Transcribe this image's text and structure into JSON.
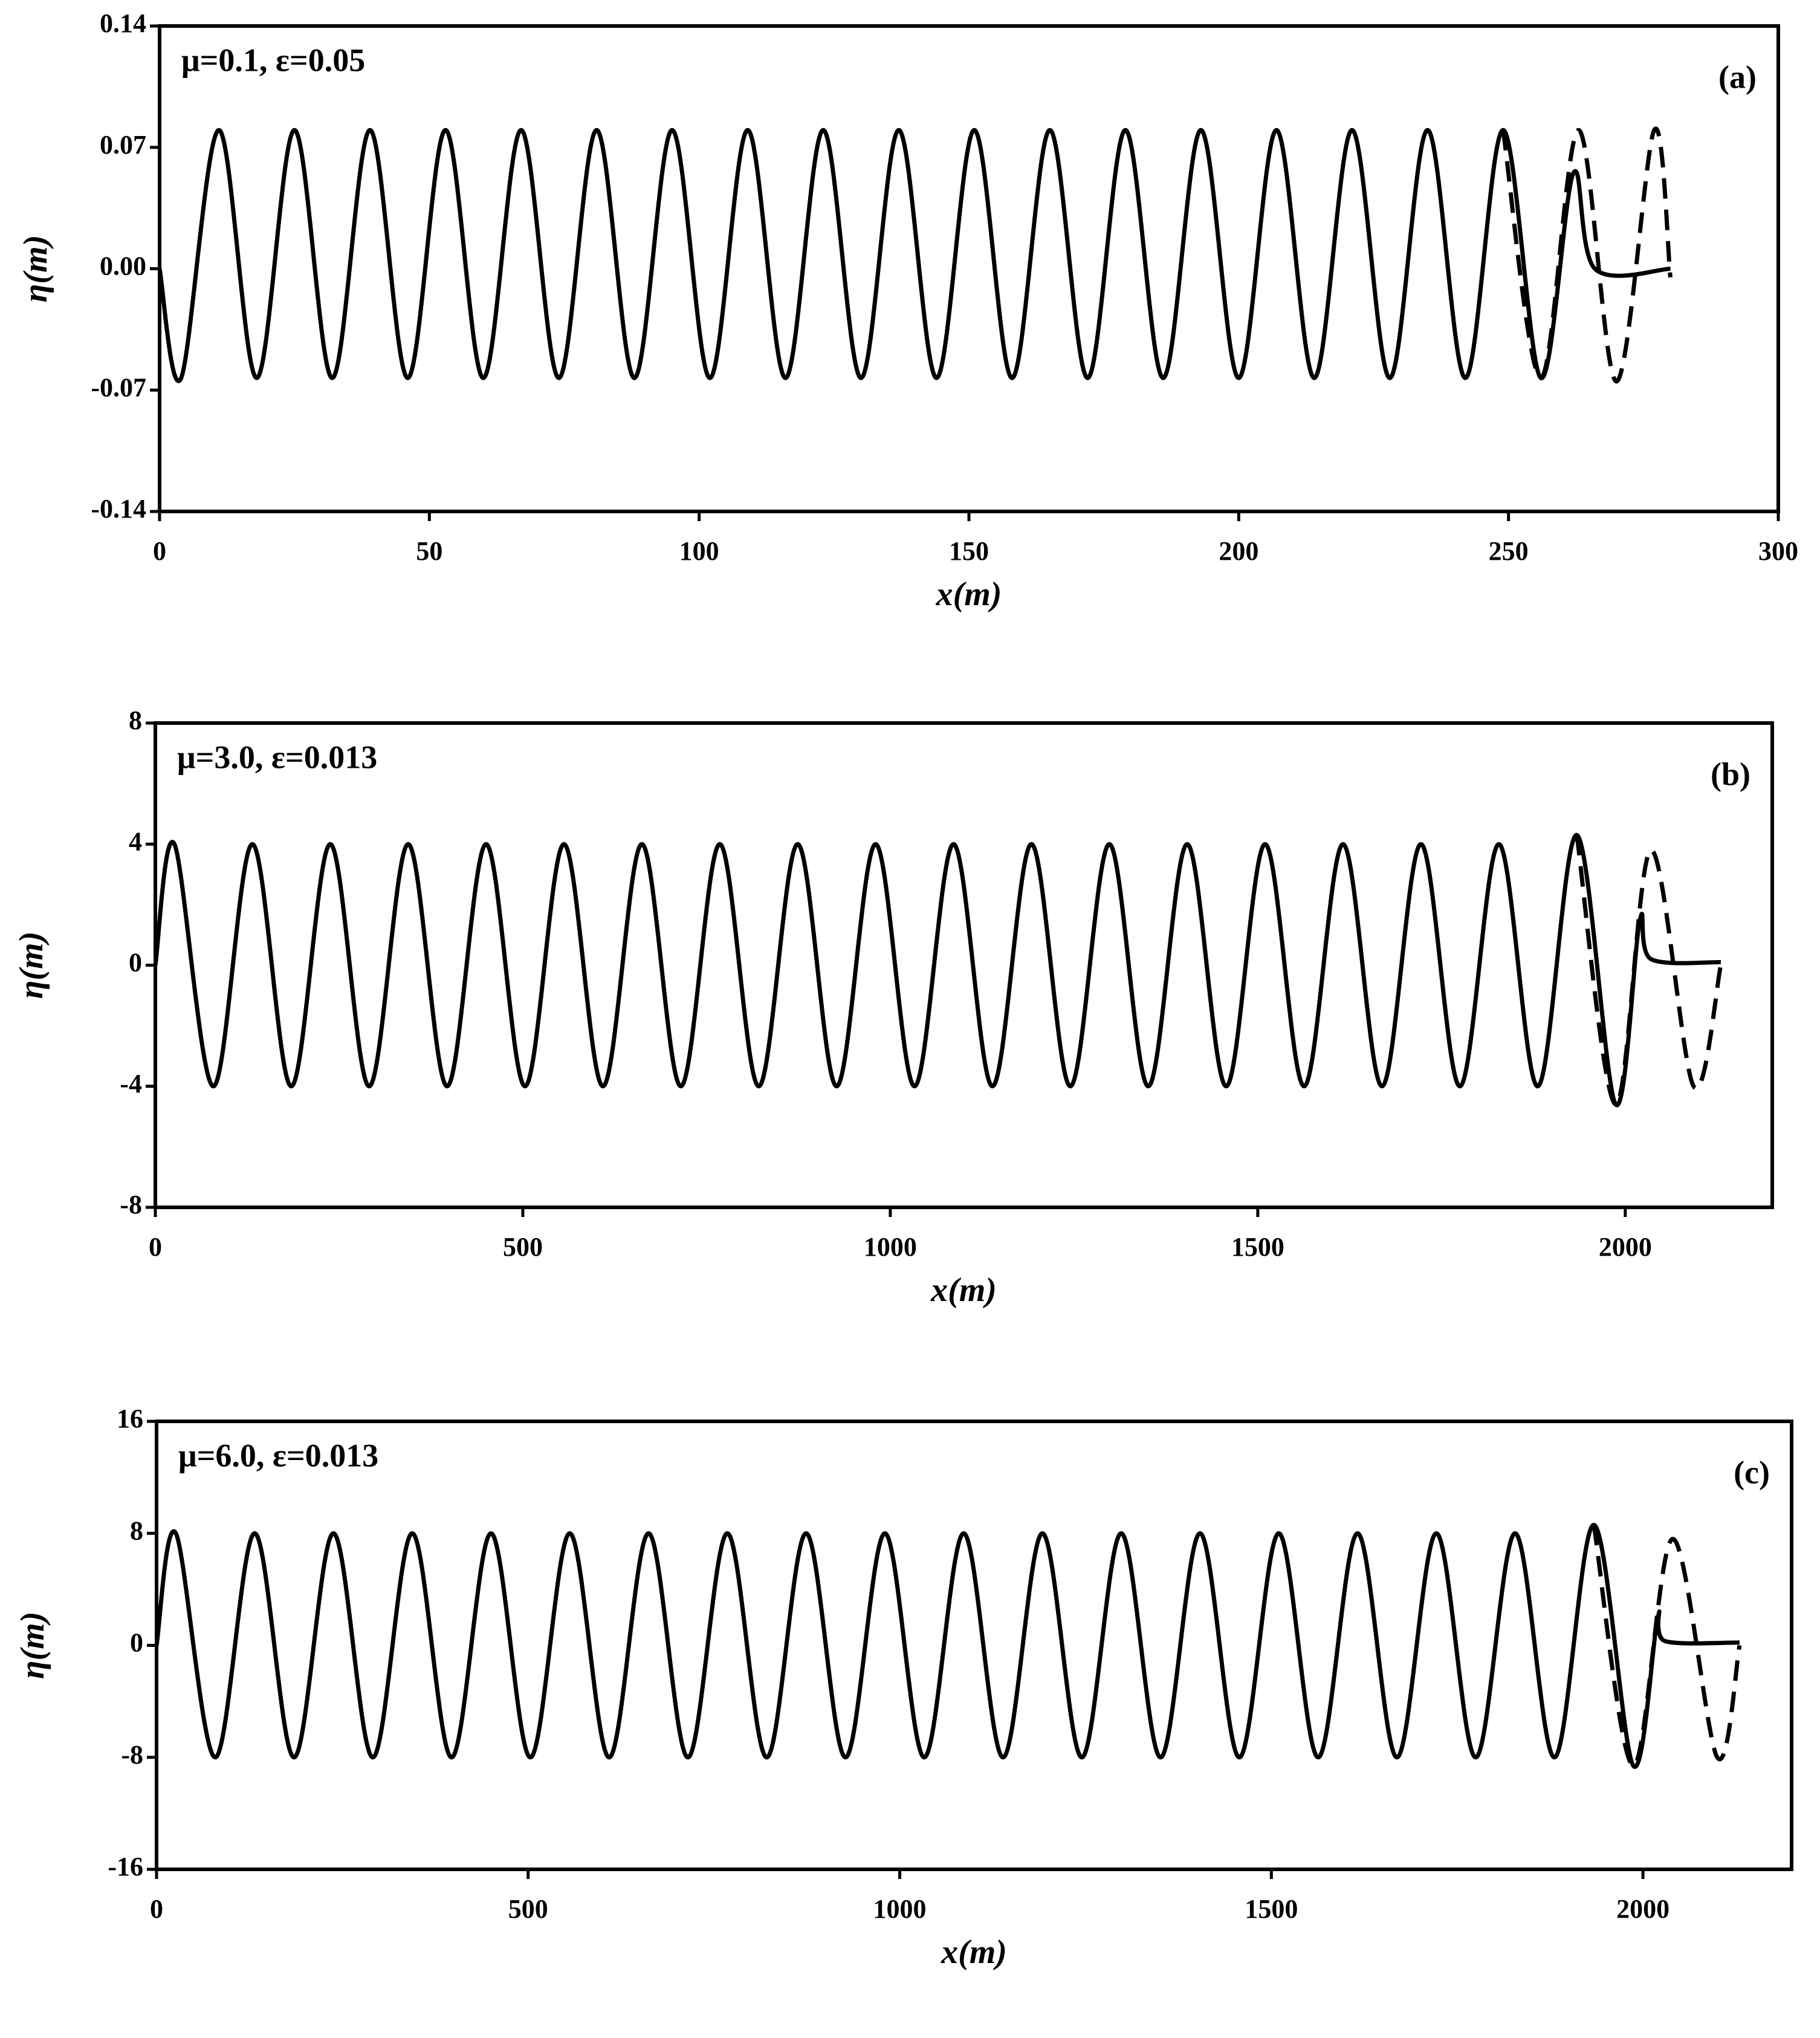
{
  "chart_data": [
    {
      "type": "line",
      "annotation": "μ=0.1, ε=0.05",
      "panel_label": "(a)",
      "xlabel": "x(m)",
      "ylabel": "η(m)",
      "xlim": [
        0,
        300
      ],
      "xticks": [
        0,
        50,
        100,
        150,
        200,
        250,
        300
      ],
      "ylim": [
        -0.14,
        0.14
      ],
      "yticks": [
        -0.14,
        -0.07,
        {
          "value": 0,
          "label": "0.00"
        },
        0.07,
        0.14
      ],
      "series": [
        {
          "color": "#000000",
          "style": "solid",
          "x": [
            0,
            4,
            11,
            18,
            25,
            32,
            39,
            46,
            53,
            60,
            67,
            74,
            81,
            88,
            95,
            102,
            109,
            116,
            123,
            130,
            137,
            144,
            151,
            158,
            165,
            172,
            179,
            186,
            193,
            200,
            207,
            214,
            221,
            228,
            235,
            242,
            249,
            256,
            262,
            266,
            280
          ],
          "values": [
            0,
            -0.063,
            0.08,
            -0.063,
            0.08,
            -0.063,
            0.08,
            -0.063,
            0.08,
            -0.063,
            0.08,
            -0.063,
            0.08,
            -0.063,
            0.08,
            -0.063,
            0.08,
            -0.063,
            0.08,
            -0.063,
            0.08,
            -0.063,
            0.08,
            -0.063,
            0.08,
            -0.063,
            0.08,
            -0.063,
            0.08,
            -0.063,
            0.08,
            -0.063,
            0.08,
            -0.063,
            0.08,
            -0.063,
            0.08,
            -0.063,
            0.055,
            0,
            0
          ]
        },
        {
          "color": "#000000",
          "style": "dashed",
          "x": [
            249,
            256,
            263,
            270,
            277,
            280
          ],
          "values": [
            0.08,
            -0.063,
            0.08,
            -0.065,
            0.08,
            -0.005
          ]
        }
      ]
    },
    {
      "type": "line",
      "annotation": "μ=3.0, ε=0.013",
      "panel_label": "(b)",
      "xlabel": "x(m)",
      "ylabel": "η(m)",
      "xlim": [
        0,
        2200
      ],
      "xticks": [
        0,
        500,
        1000,
        1500,
        2000
      ],
      "ylim": [
        -8,
        8
      ],
      "yticks": [
        -8,
        -4,
        0,
        4,
        8
      ],
      "series": [
        {
          "color": "#000000",
          "style": "solid",
          "x": [
            0,
            26,
            79,
            132,
            185,
            238,
            291,
            344,
            397,
            450,
            503,
            556,
            609,
            662,
            715,
            768,
            821,
            874,
            927,
            980,
            1033,
            1086,
            1139,
            1192,
            1245,
            1298,
            1351,
            1404,
            1457,
            1510,
            1563,
            1616,
            1669,
            1722,
            1775,
            1828,
            1881,
            1934,
            1987,
            2020,
            2035,
            2130
          ],
          "values": [
            0,
            4,
            -4,
            4,
            -4,
            4,
            -4,
            4,
            -4,
            4,
            -4,
            4,
            -4,
            4,
            -4,
            4,
            -4,
            4,
            -4,
            4,
            -4,
            4,
            -4,
            4,
            -4,
            4,
            -4,
            4,
            -4,
            4,
            -4,
            4,
            -4,
            4,
            -4,
            4,
            -4,
            4.3,
            -4.6,
            1.5,
            0.2,
            0.1
          ]
        },
        {
          "color": "#000000",
          "style": "dashed",
          "x": [
            1934,
            1987,
            2035,
            2093,
            2130
          ],
          "values": [
            4.3,
            -4.6,
            3.8,
            -4,
            0
          ]
        }
      ]
    },
    {
      "type": "line",
      "annotation": "μ=6.0, ε=0.013",
      "panel_label": "(c)",
      "xlabel": "x(m)",
      "ylabel": "η(m)",
      "xlim": [
        0,
        2200
      ],
      "xticks": [
        0,
        500,
        1000,
        1500,
        2000
      ],
      "ylim": [
        -16,
        16
      ],
      "yticks": [
        -16,
        -8,
        0,
        8,
        16
      ],
      "series": [
        {
          "color": "#000000",
          "style": "solid",
          "x": [
            0,
            26,
            79,
            132,
            185,
            238,
            291,
            344,
            397,
            450,
            503,
            556,
            609,
            662,
            715,
            768,
            821,
            874,
            927,
            980,
            1033,
            1086,
            1139,
            1192,
            1245,
            1298,
            1351,
            1404,
            1457,
            1510,
            1563,
            1616,
            1669,
            1722,
            1775,
            1828,
            1881,
            1934,
            1987,
            2020,
            2030,
            2130
          ],
          "values": [
            0,
            8,
            -8,
            8,
            -8,
            8,
            -8,
            8,
            -8,
            8,
            -8,
            8,
            -8,
            8,
            -8,
            8,
            -8,
            8,
            -8,
            8,
            -8,
            8,
            -8,
            8,
            -8,
            8,
            -8,
            8,
            -8,
            8,
            -8,
            8,
            -8,
            8,
            -8,
            8,
            -8,
            8.6,
            -8.6,
            2,
            0.3,
            0.2
          ]
        },
        {
          "color": "#000000",
          "style": "dashed",
          "x": [
            1934,
            1987,
            2040,
            2100,
            2130
          ],
          "values": [
            8.6,
            -8.6,
            7.6,
            -8,
            0
          ]
        }
      ]
    }
  ]
}
